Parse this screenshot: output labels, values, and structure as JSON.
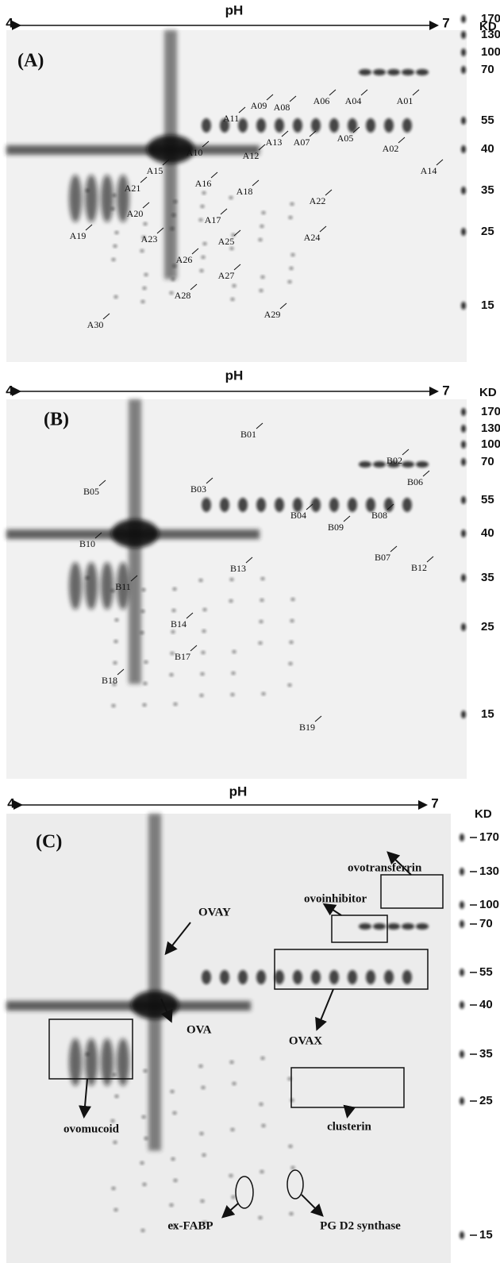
{
  "panels": [
    {
      "label": "(A)",
      "ph_axis": {
        "start": "4",
        "title": "pH",
        "end": "7"
      },
      "mw_unit": "KD",
      "mw_markers": [
        "170",
        "130",
        "100",
        "70",
        "55",
        "40",
        "35",
        "25",
        "15"
      ],
      "spots": [
        "A01",
        "A02",
        "A04",
        "A05",
        "A06",
        "A07",
        "A08",
        "A09",
        "A10",
        "A11",
        "A12",
        "A13",
        "A14",
        "A15",
        "A16",
        "A17",
        "A18",
        "A19",
        "A20",
        "A21",
        "A22",
        "A23",
        "A24",
        "A25",
        "A26",
        "A27",
        "A28",
        "A29",
        "A30"
      ]
    },
    {
      "label": "(B)",
      "ph_axis": {
        "start": "4",
        "title": "pH",
        "end": "7"
      },
      "mw_unit": "KD",
      "mw_markers": [
        "170",
        "130",
        "100",
        "70",
        "55",
        "40",
        "35",
        "25",
        "15"
      ],
      "spots": [
        "B01",
        "B02",
        "B03",
        "B04",
        "B05",
        "B06",
        "B07",
        "B08",
        "B09",
        "B10",
        "B11",
        "B12",
        "B13",
        "B14",
        "B17",
        "B18",
        "B19"
      ]
    },
    {
      "label": "(C)",
      "ph_axis": {
        "start": "4",
        "title": "pH",
        "end": "7"
      },
      "mw_unit": "KD",
      "mw_markers": [
        "170",
        "130",
        "100",
        "70",
        "55",
        "40",
        "35",
        "25",
        "15"
      ],
      "spots": [
        "OVAY",
        "OVA",
        "OVAX",
        "ovotransferrin",
        "ovoinhibitor",
        "ovomucoid",
        "clusterin",
        "ex-FABP",
        "PG D2 synthase"
      ]
    }
  ]
}
